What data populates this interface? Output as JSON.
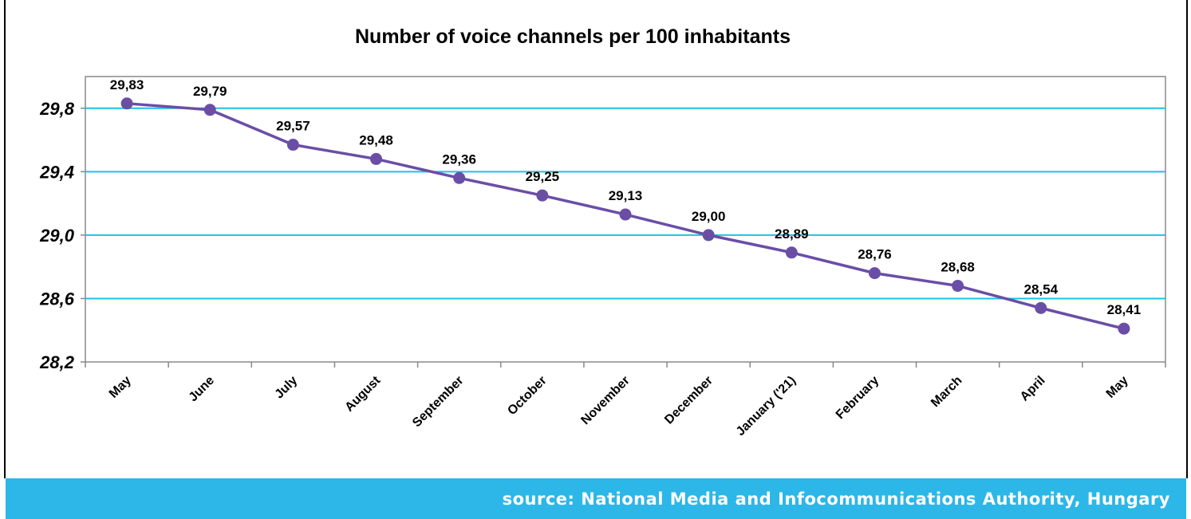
{
  "chart_data": {
    "type": "line",
    "title": "Number of voice channels per 100 inhabitants",
    "xlabel": "",
    "ylabel": "",
    "categories": [
      "May",
      "June",
      "July",
      "August",
      "September",
      "October",
      "November",
      "December",
      "January ('21)",
      "February",
      "March",
      "April",
      "May"
    ],
    "values": [
      29.83,
      29.79,
      29.57,
      29.48,
      29.36,
      29.25,
      29.13,
      29.0,
      28.89,
      28.76,
      28.68,
      28.54,
      28.41
    ],
    "data_labels": [
      "29,83",
      "29,79",
      "29,57",
      "29,48",
      "29,36",
      "29,25",
      "29,13",
      "29,00",
      "28,89",
      "28,76",
      "28,68",
      "28,54",
      "28,41"
    ],
    "ylim": [
      28.2,
      30.0
    ],
    "yticks": [
      28.2,
      28.6,
      29.0,
      29.4,
      29.8
    ],
    "ytick_labels": [
      "28,2",
      "28,6",
      "29,0",
      "29,4",
      "29,8"
    ],
    "grid": true,
    "legend": "none",
    "colors": {
      "line": "#6a4ea6",
      "marker": "#6a4ea6",
      "grid": "#1ec0ea",
      "axis": "#888888"
    }
  },
  "footer": {
    "source": "source: National Media and Infocommunications Authority, Hungary",
    "background": "#2cb7e8"
  }
}
